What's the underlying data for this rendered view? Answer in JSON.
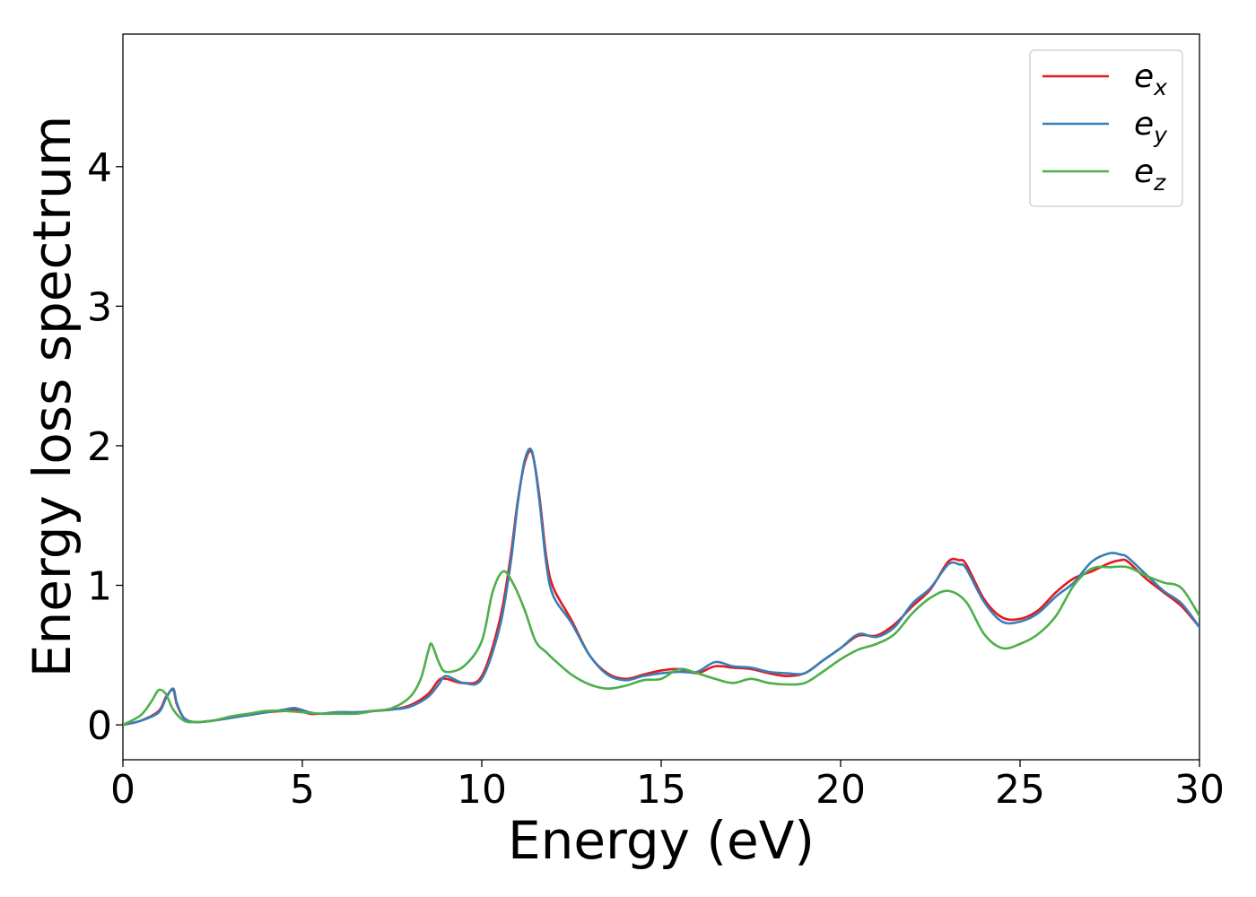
{
  "chart_data": {
    "type": "line",
    "title": "",
    "xlabel": "Energy (eV)",
    "ylabel": "Energy loss spectrum",
    "xlim": [
      0,
      30
    ],
    "ylim": [
      -0.25,
      4.95
    ],
    "xticks": [
      0,
      5,
      10,
      15,
      20,
      25,
      30
    ],
    "yticks": [
      0,
      1,
      2,
      3,
      4
    ],
    "grid": false,
    "legend_position": "top-right",
    "series": [
      {
        "name": "e",
        "subscript": "x",
        "color": "#e41a1c",
        "x": [
          0,
          0.5,
          1.0,
          1.2,
          1.4,
          1.5,
          1.7,
          2.0,
          2.5,
          3.0,
          3.5,
          4.0,
          4.5,
          4.8,
          5.2,
          5.5,
          6.0,
          6.5,
          7.0,
          7.5,
          8.0,
          8.5,
          8.8,
          9.0,
          9.5,
          10.0,
          10.5,
          10.8,
          11.0,
          11.2,
          11.4,
          11.6,
          11.8,
          12.0,
          12.5,
          13.0,
          13.5,
          14.0,
          14.5,
          15.0,
          15.5,
          16.0,
          16.5,
          17.0,
          17.5,
          18.0,
          18.5,
          19.0,
          19.5,
          20.0,
          20.5,
          21.0,
          21.5,
          22.0,
          22.5,
          23.0,
          23.3,
          23.5,
          24.0,
          24.5,
          25.0,
          25.5,
          26.0,
          26.5,
          27.0,
          27.5,
          27.8,
          28.0,
          28.5,
          29.0,
          29.5,
          30.0
        ],
        "y": [
          0.0,
          0.03,
          0.1,
          0.2,
          0.25,
          0.15,
          0.05,
          0.02,
          0.03,
          0.05,
          0.07,
          0.09,
          0.1,
          0.11,
          0.08,
          0.08,
          0.09,
          0.09,
          0.1,
          0.11,
          0.14,
          0.22,
          0.32,
          0.33,
          0.3,
          0.35,
          0.75,
          1.2,
          1.6,
          1.88,
          1.95,
          1.65,
          1.2,
          0.98,
          0.75,
          0.5,
          0.37,
          0.33,
          0.36,
          0.39,
          0.4,
          0.37,
          0.42,
          0.41,
          0.4,
          0.37,
          0.35,
          0.37,
          0.46,
          0.55,
          0.64,
          0.64,
          0.72,
          0.85,
          0.97,
          1.17,
          1.18,
          1.15,
          0.9,
          0.77,
          0.76,
          0.82,
          0.95,
          1.05,
          1.1,
          1.16,
          1.18,
          1.17,
          1.05,
          0.95,
          0.85,
          0.7
        ]
      },
      {
        "name": "e",
        "subscript": "y",
        "color": "#377eb8",
        "x": [
          0,
          0.5,
          1.0,
          1.2,
          1.4,
          1.5,
          1.7,
          2.0,
          2.5,
          3.0,
          3.5,
          4.0,
          4.5,
          4.8,
          5.2,
          5.5,
          6.0,
          6.5,
          7.0,
          7.5,
          8.0,
          8.5,
          8.8,
          9.0,
          9.5,
          10.0,
          10.5,
          10.8,
          11.0,
          11.2,
          11.4,
          11.6,
          11.8,
          12.0,
          12.5,
          13.0,
          13.5,
          14.0,
          14.5,
          15.0,
          15.5,
          16.0,
          16.5,
          17.0,
          17.5,
          18.0,
          18.5,
          19.0,
          19.5,
          20.0,
          20.5,
          21.0,
          21.5,
          22.0,
          22.5,
          23.0,
          23.3,
          23.5,
          24.0,
          24.5,
          25.0,
          25.5,
          26.0,
          26.5,
          27.0,
          27.5,
          27.8,
          28.0,
          28.5,
          29.0,
          29.5,
          30.0
        ],
        "y": [
          0.0,
          0.03,
          0.09,
          0.19,
          0.26,
          0.16,
          0.05,
          0.02,
          0.03,
          0.05,
          0.07,
          0.09,
          0.11,
          0.12,
          0.09,
          0.08,
          0.09,
          0.09,
          0.1,
          0.11,
          0.13,
          0.2,
          0.29,
          0.35,
          0.3,
          0.33,
          0.7,
          1.15,
          1.58,
          1.9,
          1.96,
          1.62,
          1.15,
          0.92,
          0.73,
          0.5,
          0.36,
          0.32,
          0.35,
          0.37,
          0.38,
          0.38,
          0.45,
          0.42,
          0.41,
          0.38,
          0.37,
          0.37,
          0.46,
          0.55,
          0.65,
          0.63,
          0.7,
          0.87,
          0.98,
          1.15,
          1.15,
          1.12,
          0.88,
          0.74,
          0.74,
          0.8,
          0.92,
          1.02,
          1.17,
          1.23,
          1.22,
          1.2,
          1.08,
          0.96,
          0.87,
          0.7
        ]
      },
      {
        "name": "e",
        "subscript": "z",
        "color": "#4daf4a",
        "x": [
          0,
          0.5,
          0.8,
          1.0,
          1.2,
          1.4,
          1.7,
          2.0,
          2.5,
          3.0,
          3.5,
          4.0,
          4.5,
          5.0,
          5.5,
          6.0,
          6.5,
          7.0,
          7.5,
          8.0,
          8.3,
          8.5,
          8.6,
          8.8,
          9.0,
          9.5,
          10.0,
          10.3,
          10.6,
          10.9,
          11.2,
          11.5,
          11.8,
          12.0,
          12.5,
          13.0,
          13.5,
          14.0,
          14.5,
          15.0,
          15.5,
          16.0,
          16.5,
          17.0,
          17.5,
          18.0,
          18.5,
          19.0,
          19.5,
          20.0,
          20.5,
          21.0,
          21.5,
          22.0,
          22.5,
          23.0,
          23.5,
          24.0,
          24.5,
          25.0,
          25.5,
          26.0,
          26.5,
          27.0,
          27.5,
          28.0,
          28.5,
          29.0,
          29.5,
          30.0
        ],
        "y": [
          0.0,
          0.07,
          0.17,
          0.25,
          0.22,
          0.11,
          0.03,
          0.02,
          0.03,
          0.06,
          0.08,
          0.1,
          0.1,
          0.09,
          0.08,
          0.08,
          0.08,
          0.1,
          0.12,
          0.2,
          0.33,
          0.52,
          0.58,
          0.45,
          0.38,
          0.42,
          0.6,
          0.95,
          1.1,
          1.0,
          0.82,
          0.6,
          0.52,
          0.47,
          0.36,
          0.29,
          0.26,
          0.28,
          0.32,
          0.33,
          0.4,
          0.37,
          0.33,
          0.3,
          0.33,
          0.3,
          0.29,
          0.3,
          0.38,
          0.47,
          0.54,
          0.58,
          0.65,
          0.8,
          0.91,
          0.96,
          0.88,
          0.65,
          0.55,
          0.58,
          0.65,
          0.78,
          1.0,
          1.12,
          1.13,
          1.13,
          1.07,
          1.02,
          0.98,
          0.78
        ]
      }
    ]
  }
}
